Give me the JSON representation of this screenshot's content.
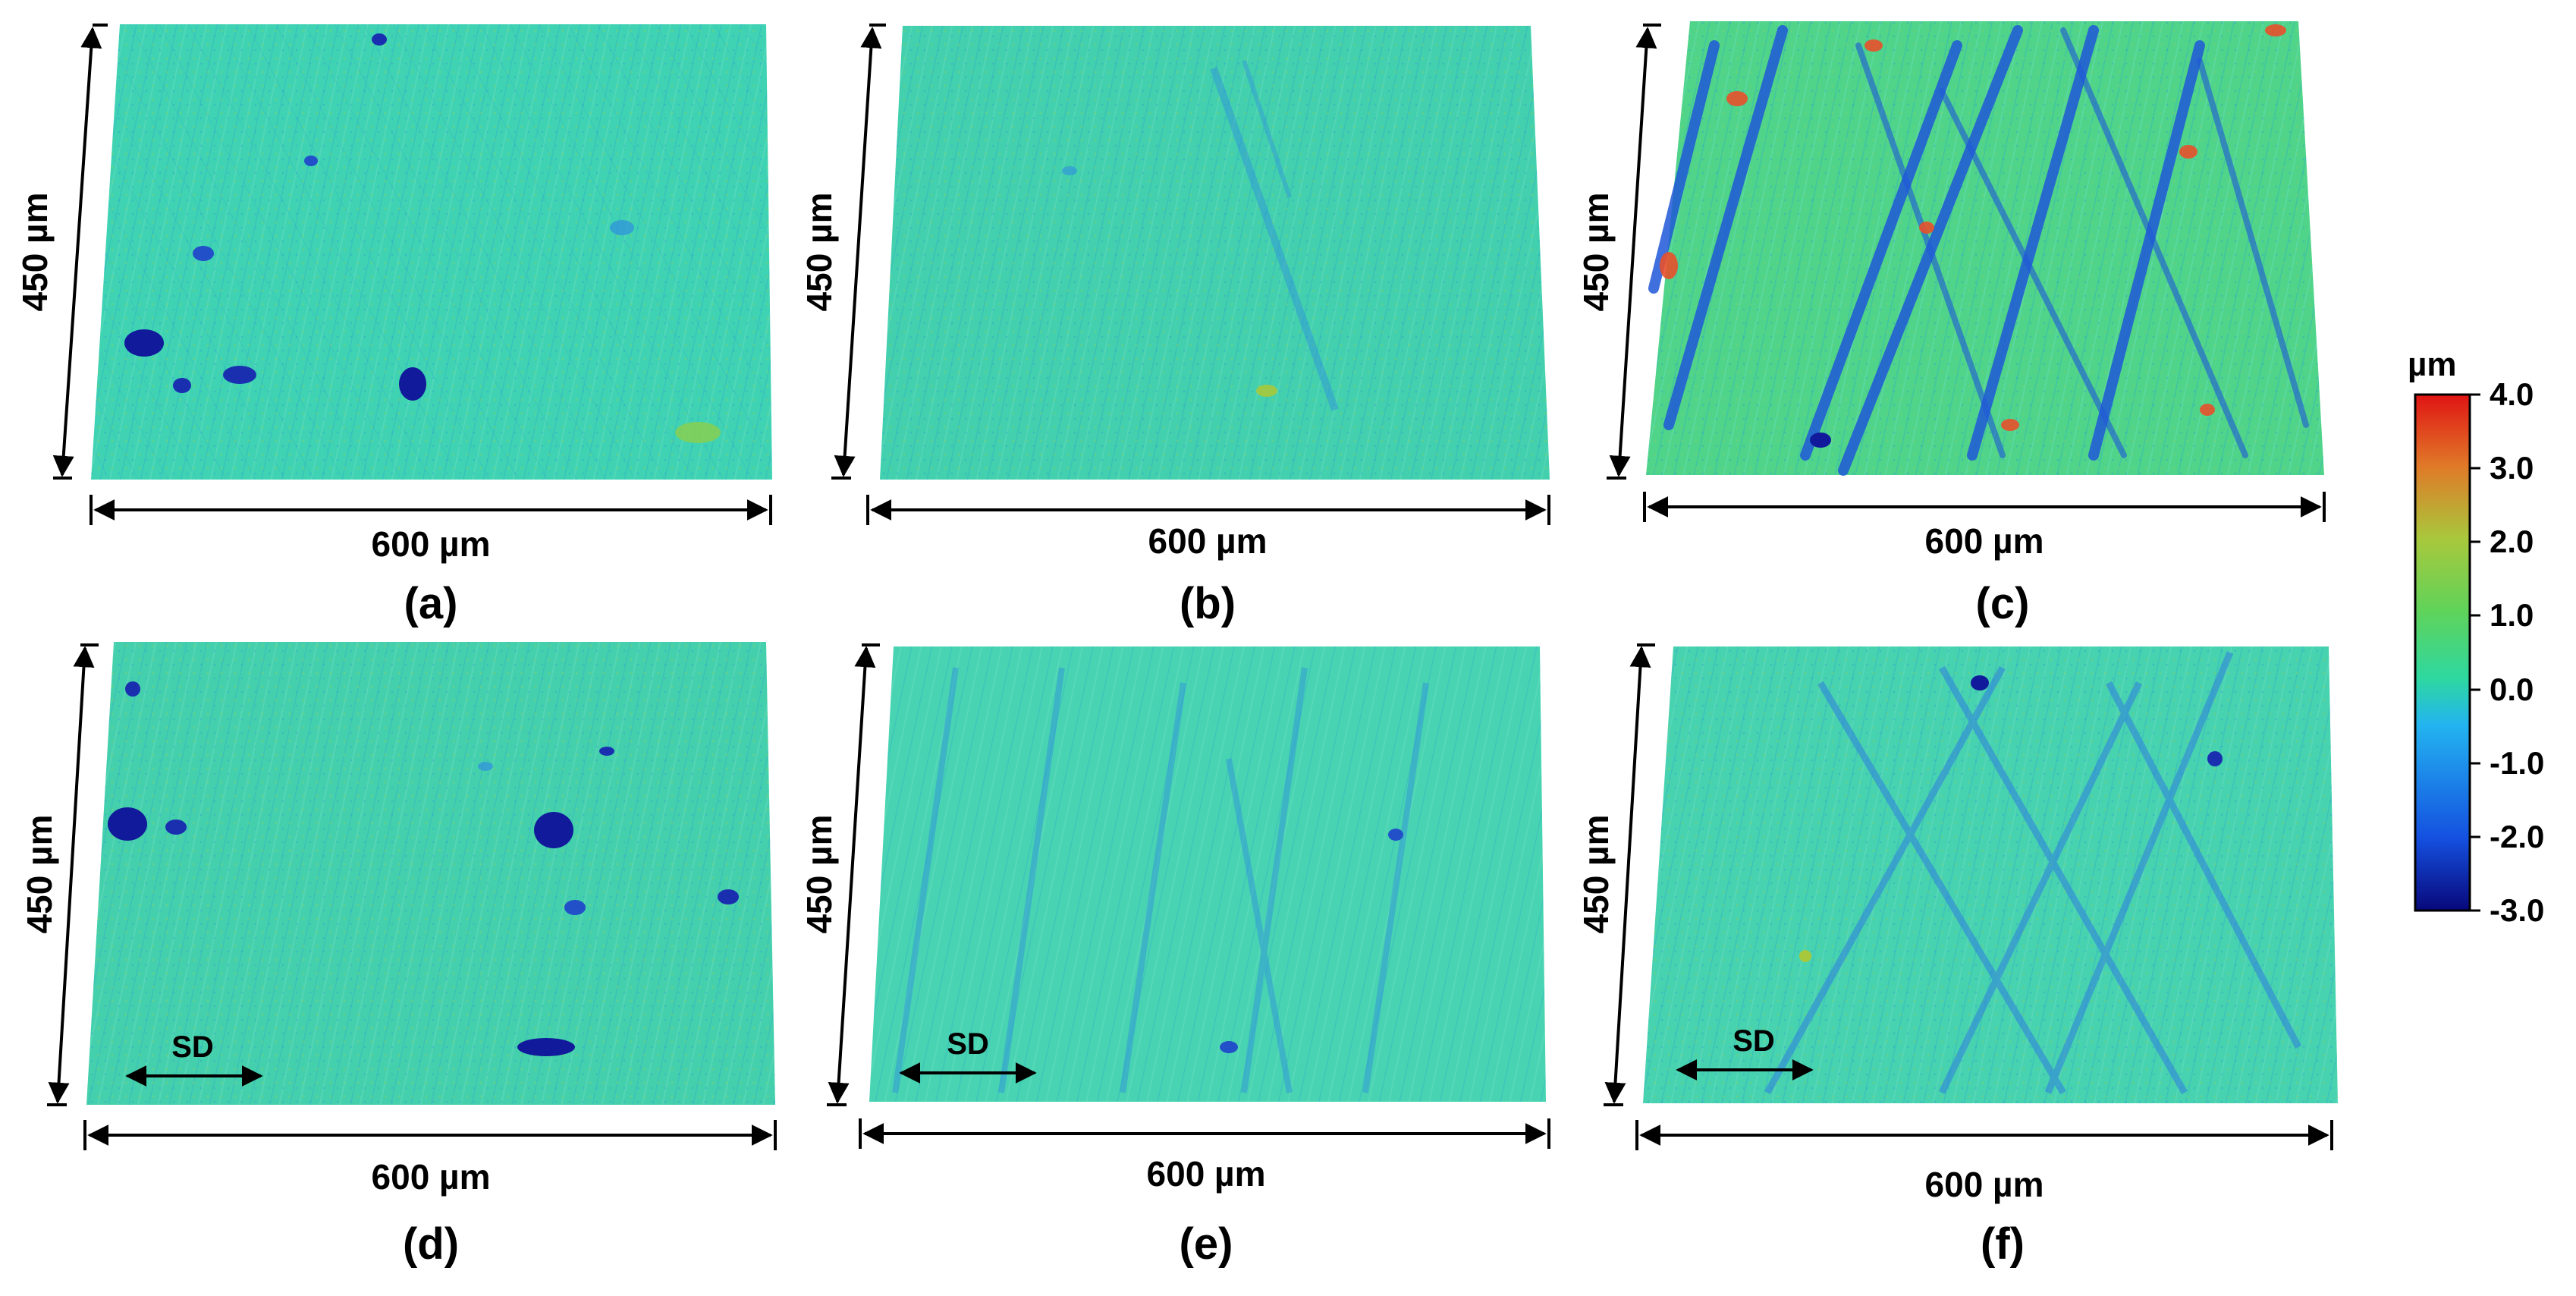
{
  "panels": [
    {
      "label": "(a)",
      "width_label": "600 µm",
      "height_label": "450 µm",
      "sd_label": ""
    },
    {
      "label": "(b)",
      "width_label": "600 µm",
      "height_label": "450 µm",
      "sd_label": ""
    },
    {
      "label": "(c)",
      "width_label": "600 µm",
      "height_label": "450 µm",
      "sd_label": ""
    },
    {
      "label": "(d)",
      "width_label": "600 µm",
      "height_label": "450 µm",
      "sd_label": "SD"
    },
    {
      "label": "(e)",
      "width_label": "600 µm",
      "height_label": "450 µm",
      "sd_label": "SD"
    },
    {
      "label": "(f)",
      "width_label": "600 µm",
      "height_label": "450 µm",
      "sd_label": "SD"
    }
  ],
  "colorbar": {
    "unit": "µm",
    "ticks": [
      "4.0",
      "3.0",
      "2.0",
      "1.0",
      "0.0",
      "-1.0",
      "-2.0",
      "-3.0"
    ],
    "min": -3.0,
    "max": 4.0,
    "colors": [
      "#08087a",
      "#1450e0",
      "#23b4f0",
      "#2ed8a0",
      "#5fd35a",
      "#a8c83c",
      "#e07a28",
      "#e01414"
    ]
  },
  "surface_colors": {
    "base": "#3fd3b3",
    "mid": "#46c8a0",
    "low": "#2f8ee0",
    "deep": "#101a9a",
    "high": "#7ed04a",
    "peak": "#e8502a"
  }
}
